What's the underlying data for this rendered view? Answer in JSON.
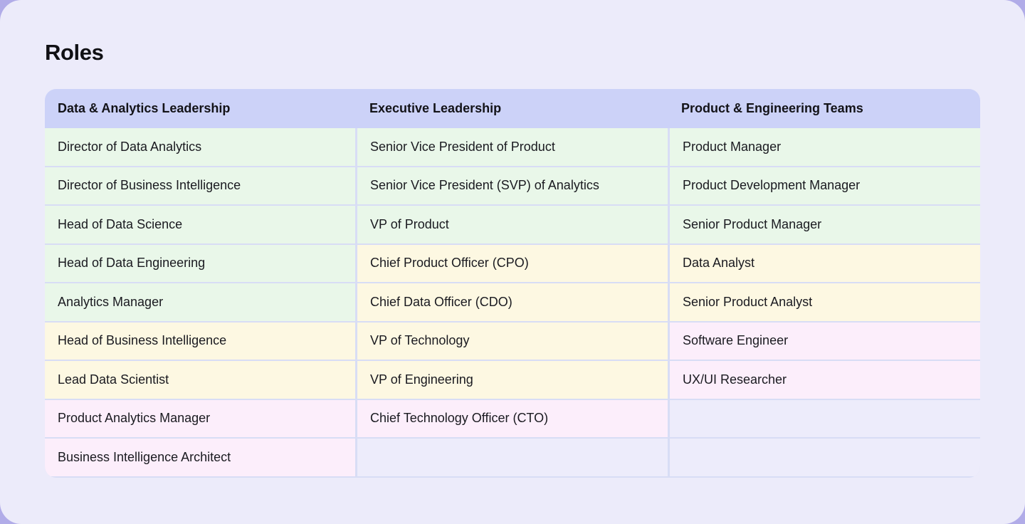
{
  "page": {
    "title": "Roles",
    "colors": {
      "backdrop": "#b1ace8",
      "page_bg": "#ecebfa",
      "header_bg": "#ccd2f8",
      "row_green": "#e9f7e9",
      "row_yellow": "#fdf8e2",
      "row_pink": "#fceefb",
      "row_empty": "#edecfb",
      "grid_line": "#d8ddf5",
      "text": "#1a1a20"
    }
  },
  "table": {
    "columns": [
      {
        "header": "Data & Analytics Leadership",
        "cells": [
          {
            "text": "Director of Data Analytics",
            "tone": "green"
          },
          {
            "text": "Director of Business Intelligence",
            "tone": "green"
          },
          {
            "text": "Head of Data Science",
            "tone": "green"
          },
          {
            "text": "Head of Data Engineering",
            "tone": "green"
          },
          {
            "text": "Analytics Manager",
            "tone": "green"
          },
          {
            "text": "Head of Business Intelligence",
            "tone": "yellow"
          },
          {
            "text": "Lead Data Scientist",
            "tone": "yellow"
          },
          {
            "text": "Product Analytics Manager",
            "tone": "pink"
          },
          {
            "text": "Business Intelligence Architect",
            "tone": "pink"
          }
        ]
      },
      {
        "header": "Executive Leadership",
        "cells": [
          {
            "text": "Senior Vice President of Product",
            "tone": "green"
          },
          {
            "text": "Senior Vice President (SVP) of Analytics",
            "tone": "green"
          },
          {
            "text": "VP of Product",
            "tone": "green"
          },
          {
            "text": "Chief Product Officer (CPO)",
            "tone": "yellow"
          },
          {
            "text": "Chief Data Officer (CDO)",
            "tone": "yellow"
          },
          {
            "text": "VP of Technology",
            "tone": "yellow"
          },
          {
            "text": "VP of Engineering",
            "tone": "yellow"
          },
          {
            "text": "Chief Technology Officer (CTO)",
            "tone": "pink"
          },
          {
            "text": "",
            "tone": "empty"
          }
        ]
      },
      {
        "header": "Product & Engineering Teams",
        "cells": [
          {
            "text": "Product Manager",
            "tone": "green"
          },
          {
            "text": "Product Development Manager",
            "tone": "green"
          },
          {
            "text": "Senior Product Manager",
            "tone": "green"
          },
          {
            "text": "Data Analyst",
            "tone": "yellow"
          },
          {
            "text": "Senior Product Analyst",
            "tone": "yellow"
          },
          {
            "text": "Software Engineer",
            "tone": "pink"
          },
          {
            "text": "UX/UI Researcher",
            "tone": "pink"
          },
          {
            "text": "",
            "tone": "empty"
          },
          {
            "text": "",
            "tone": "empty"
          }
        ]
      }
    ]
  }
}
